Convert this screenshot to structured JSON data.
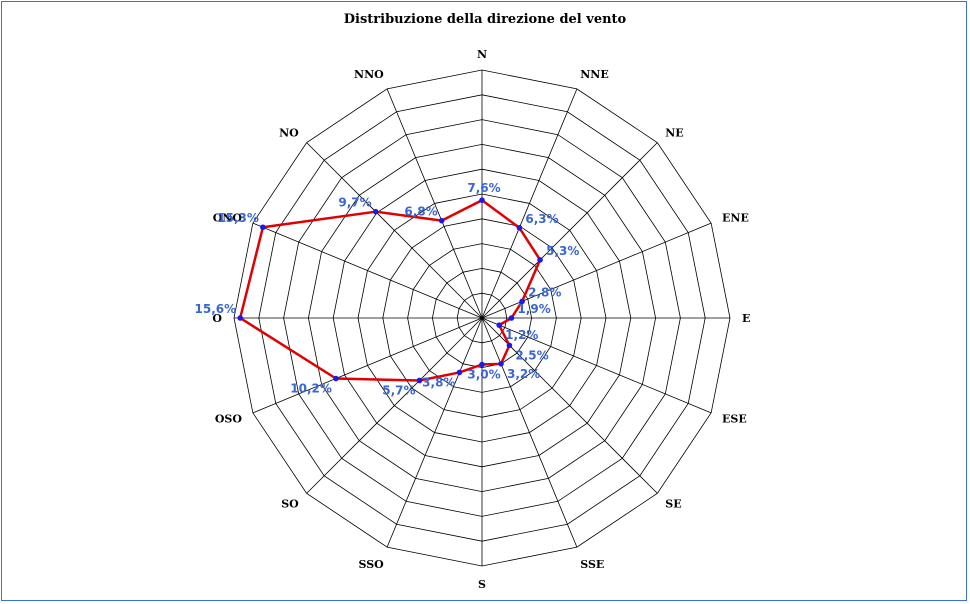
{
  "chart_data": {
    "type": "radar",
    "title": "Distribuzione della direzione del vento",
    "categories": [
      "N",
      "NNE",
      "NE",
      "ENE",
      "E",
      "ESE",
      "SE",
      "SSE",
      "S",
      "SSO",
      "SO",
      "OSO",
      "O",
      "ONO",
      "NO",
      "NNO"
    ],
    "values": [
      7.6,
      6.3,
      5.3,
      2.8,
      1.9,
      1.2,
      2.5,
      3.2,
      3.0,
      3.8,
      5.7,
      10.2,
      15.6,
      15.3,
      9.7,
      6.8
    ],
    "value_labels": [
      "7,6%",
      "6,3%",
      "5,3%",
      "2,8%",
      "1,9%",
      "1,2%",
      "2,5%",
      "3,2%",
      "3,0%",
      "3,8%",
      "5,7%",
      "10,2%",
      "15,6%",
      "15,3%",
      "9,7%",
      "6,8%"
    ],
    "rmax": 16,
    "rings": 10,
    "colors": {
      "line": "#e00000",
      "marker": "#1a1aee",
      "label": "#3a66d0",
      "grid": "#000000",
      "border": "#3c6fd6"
    }
  }
}
